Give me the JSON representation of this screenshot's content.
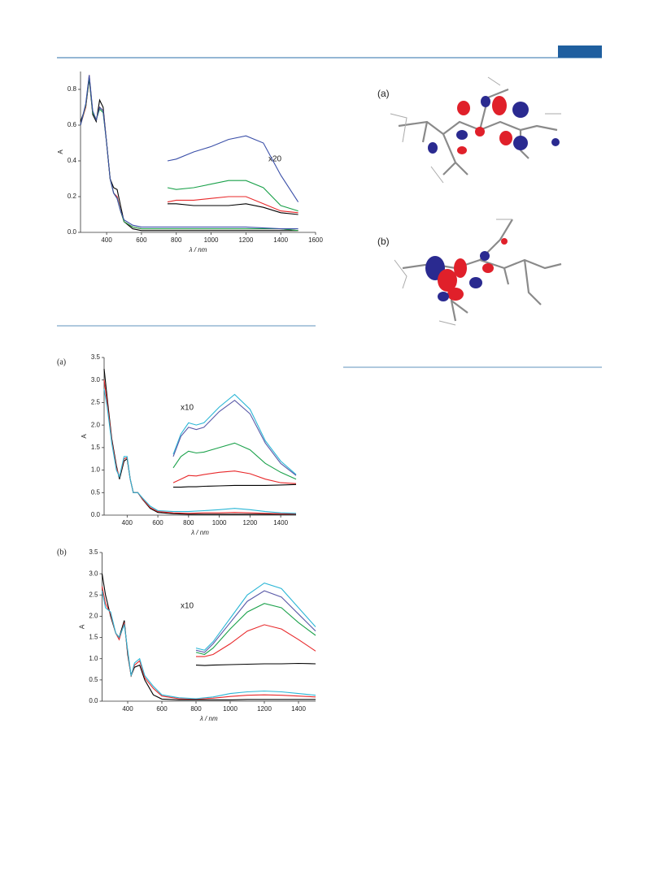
{
  "chart_data": [
    {
      "type": "line",
      "x_label": "λ / nm",
      "y_label": "A",
      "annotation": "x20",
      "xlim": [
        250,
        1600
      ],
      "ylim": [
        0,
        0.9
      ],
      "xticks": [
        400,
        600,
        800,
        1000,
        1200,
        1400,
        1600
      ],
      "yticks": [
        {
          "value": 0,
          "label": "0.0"
        },
        0.2,
        0.4,
        0.6,
        0.8
      ],
      "series": [
        {
          "color": "#000000",
          "x": [
            250,
            280,
            300,
            320,
            340,
            360,
            380,
            400,
            420,
            440,
            460,
            480,
            500,
            550,
            600,
            700,
            800,
            1000,
            1200,
            1400,
            1500
          ],
          "values": [
            0.62,
            0.7,
            0.86,
            0.66,
            0.62,
            0.74,
            0.7,
            0.5,
            0.3,
            0.25,
            0.24,
            0.15,
            0.06,
            0.02,
            0.01,
            0.01,
            0.01,
            0.01,
            0.01,
            0.01,
            0.01
          ]
        },
        {
          "color": "#e8282a",
          "x": [
            250,
            280,
            300,
            320,
            340,
            360,
            380,
            400,
            420,
            440,
            460,
            480,
            500,
            550,
            600,
            700,
            800,
            1000,
            1200,
            1400,
            1500
          ],
          "values": [
            0.6,
            0.7,
            0.88,
            0.67,
            0.63,
            0.7,
            0.68,
            0.5,
            0.3,
            0.22,
            0.2,
            0.12,
            0.06,
            0.03,
            0.02,
            0.02,
            0.02,
            0.02,
            0.02,
            0.02,
            0.01
          ]
        },
        {
          "color": "#1aa14a",
          "x": [
            250,
            280,
            300,
            320,
            340,
            360,
            380,
            400,
            420,
            440,
            460,
            480,
            500,
            550,
            600,
            700,
            800,
            1000,
            1200,
            1400,
            1500
          ],
          "values": [
            0.6,
            0.71,
            0.87,
            0.67,
            0.63,
            0.69,
            0.67,
            0.5,
            0.3,
            0.22,
            0.19,
            0.12,
            0.06,
            0.03,
            0.02,
            0.02,
            0.02,
            0.02,
            0.02,
            0.02,
            0.01
          ]
        },
        {
          "color": "#3a4fa8",
          "x": [
            250,
            280,
            300,
            320,
            340,
            360,
            380,
            400,
            420,
            440,
            460,
            480,
            500,
            550,
            600,
            700,
            800,
            1000,
            1200,
            1400,
            1500
          ],
          "values": [
            0.6,
            0.72,
            0.88,
            0.68,
            0.63,
            0.7,
            0.68,
            0.5,
            0.3,
            0.22,
            0.19,
            0.12,
            0.07,
            0.04,
            0.03,
            0.03,
            0.03,
            0.03,
            0.03,
            0.02,
            0.02
          ]
        },
        {
          "color": "#3a4fa8",
          "x": [
            750,
            800,
            900,
            1000,
            1100,
            1200,
            1300,
            1400,
            1500
          ],
          "values": [
            0.4,
            0.41,
            0.45,
            0.48,
            0.52,
            0.54,
            0.5,
            0.32,
            0.17
          ]
        },
        {
          "color": "#1aa14a",
          "x": [
            750,
            800,
            900,
            1000,
            1100,
            1200,
            1300,
            1400,
            1500
          ],
          "values": [
            0.25,
            0.24,
            0.25,
            0.27,
            0.29,
            0.29,
            0.25,
            0.15,
            0.12
          ]
        },
        {
          "color": "#e8282a",
          "x": [
            750,
            800,
            900,
            1000,
            1100,
            1200,
            1300,
            1400,
            1500
          ],
          "values": [
            0.17,
            0.18,
            0.18,
            0.19,
            0.2,
            0.2,
            0.16,
            0.12,
            0.11
          ]
        },
        {
          "color": "#000000",
          "x": [
            750,
            800,
            900,
            1000,
            1100,
            1200,
            1300,
            1400,
            1500
          ],
          "values": [
            0.16,
            0.16,
            0.15,
            0.15,
            0.15,
            0.16,
            0.14,
            0.11,
            0.1
          ]
        }
      ]
    },
    {
      "type": "line",
      "panel_label": "(a)",
      "x_label": "λ / nm",
      "y_label": "A",
      "annotation": "x10",
      "xlim": [
        250,
        1500
      ],
      "ylim": [
        0,
        3.5
      ],
      "xticks": [
        400,
        600,
        800,
        1000,
        1200,
        1400
      ],
      "yticks": [
        {
          "value": 0,
          "label": "0.0"
        },
        0.5,
        {
          "value": 1,
          "label": "1.0"
        },
        1.5,
        {
          "value": 2,
          "label": "2.0"
        },
        2.5,
        {
          "value": 3,
          "label": "3.0"
        },
        3.5
      ],
      "series": [
        {
          "color": "#000000",
          "x": [
            250,
            270,
            300,
            330,
            350,
            380,
            400,
            420,
            440,
            470,
            500,
            550,
            600,
            700,
            800,
            900,
            1000,
            1100,
            1200,
            1300,
            1400,
            1500
          ],
          "values": [
            3.25,
            2.6,
            1.7,
            1.1,
            0.8,
            1.2,
            1.25,
            0.8,
            0.5,
            0.5,
            0.35,
            0.15,
            0.06,
            0.03,
            0.02,
            0.02,
            0.02,
            0.02,
            0.02,
            0.02,
            0.02,
            0.02
          ]
        },
        {
          "color": "#e8282a",
          "x": [
            250,
            270,
            300,
            330,
            350,
            380,
            400,
            420,
            440,
            470,
            500,
            550,
            600,
            700,
            800,
            900,
            1000,
            1100,
            1200,
            1300,
            1400,
            1500
          ],
          "values": [
            3.0,
            2.5,
            1.65,
            1.05,
            0.85,
            1.25,
            1.28,
            0.8,
            0.5,
            0.5,
            0.36,
            0.17,
            0.08,
            0.05,
            0.04,
            0.05,
            0.05,
            0.06,
            0.05,
            0.04,
            0.03,
            0.03
          ]
        },
        {
          "color": "#2ab6d6",
          "x": [
            250,
            270,
            300,
            330,
            350,
            380,
            400,
            420,
            440,
            470,
            500,
            550,
            600,
            700,
            800,
            900,
            1000,
            1100,
            1200,
            1300,
            1400,
            1500
          ],
          "values": [
            2.8,
            2.4,
            1.6,
            1.0,
            0.85,
            1.3,
            1.3,
            0.8,
            0.5,
            0.5,
            0.38,
            0.2,
            0.1,
            0.08,
            0.08,
            0.1,
            0.12,
            0.15,
            0.12,
            0.08,
            0.05,
            0.04
          ]
        },
        {
          "color": "#2ab6d6",
          "x": [
            700,
            750,
            800,
            850,
            900,
            1000,
            1100,
            1200,
            1300,
            1400,
            1500
          ],
          "values": [
            1.35,
            1.8,
            2.05,
            2.0,
            2.05,
            2.4,
            2.68,
            2.35,
            1.65,
            1.2,
            0.9
          ]
        },
        {
          "color": "#5a5aa8",
          "x": [
            700,
            750,
            800,
            850,
            900,
            1000,
            1100,
            1200,
            1300,
            1400,
            1500
          ],
          "values": [
            1.3,
            1.75,
            1.95,
            1.9,
            1.95,
            2.3,
            2.55,
            2.25,
            1.6,
            1.15,
            0.88
          ]
        },
        {
          "color": "#1aa14a",
          "x": [
            700,
            750,
            800,
            850,
            900,
            1000,
            1100,
            1200,
            1300,
            1400,
            1500
          ],
          "values": [
            1.05,
            1.3,
            1.42,
            1.38,
            1.4,
            1.5,
            1.6,
            1.45,
            1.15,
            0.95,
            0.8
          ]
        },
        {
          "color": "#e8282a",
          "x": [
            700,
            750,
            800,
            850,
            900,
            1000,
            1100,
            1200,
            1300,
            1400,
            1500
          ],
          "values": [
            0.72,
            0.8,
            0.88,
            0.87,
            0.9,
            0.95,
            0.98,
            0.92,
            0.8,
            0.72,
            0.7
          ]
        },
        {
          "color": "#000000",
          "x": [
            700,
            750,
            800,
            850,
            900,
            1000,
            1100,
            1200,
            1300,
            1400,
            1500
          ],
          "values": [
            0.62,
            0.62,
            0.63,
            0.63,
            0.64,
            0.65,
            0.66,
            0.66,
            0.66,
            0.67,
            0.68
          ]
        }
      ]
    },
    {
      "type": "line",
      "panel_label": "(b)",
      "x_label": "λ / nm",
      "y_label": "A",
      "annotation": "x10",
      "xlim": [
        250,
        1500
      ],
      "ylim": [
        0,
        3.5
      ],
      "xticks": [
        400,
        600,
        800,
        1000,
        1200,
        1400
      ],
      "yticks": [
        {
          "value": 0,
          "label": "0.0"
        },
        0.5,
        {
          "value": 1,
          "label": "1.0"
        },
        1.5,
        {
          "value": 2,
          "label": "2.0"
        },
        2.5,
        {
          "value": 3,
          "label": "3.0"
        },
        3.5
      ],
      "series": [
        {
          "color": "#000000",
          "x": [
            250,
            270,
            300,
            330,
            350,
            380,
            400,
            420,
            440,
            470,
            500,
            550,
            600,
            700,
            800,
            900,
            1000,
            1100,
            1200,
            1300,
            1400,
            1500
          ],
          "values": [
            3.0,
            2.5,
            2.0,
            1.6,
            1.5,
            1.9,
            1.1,
            0.6,
            0.8,
            0.85,
            0.5,
            0.15,
            0.05,
            0.03,
            0.03,
            0.03,
            0.03,
            0.04,
            0.04,
            0.04,
            0.04,
            0.04
          ]
        },
        {
          "color": "#e8282a",
          "x": [
            250,
            270,
            300,
            330,
            350,
            380,
            400,
            420,
            440,
            470,
            500,
            550,
            600,
            700,
            800,
            900,
            1000,
            1100,
            1200,
            1300,
            1400,
            1500
          ],
          "values": [
            2.7,
            2.3,
            2.05,
            1.6,
            1.45,
            1.85,
            1.15,
            0.6,
            0.85,
            0.95,
            0.55,
            0.3,
            0.12,
            0.06,
            0.05,
            0.07,
            0.11,
            0.14,
            0.15,
            0.14,
            0.12,
            0.1
          ]
        },
        {
          "color": "#2ab6d6",
          "x": [
            250,
            270,
            300,
            330,
            350,
            380,
            400,
            420,
            440,
            470,
            500,
            550,
            600,
            700,
            800,
            900,
            1000,
            1100,
            1200,
            1300,
            1400,
            1500
          ],
          "values": [
            2.6,
            2.2,
            2.1,
            1.6,
            1.5,
            1.8,
            1.2,
            0.6,
            0.9,
            1.0,
            0.6,
            0.35,
            0.15,
            0.08,
            0.06,
            0.1,
            0.18,
            0.22,
            0.24,
            0.22,
            0.18,
            0.14
          ]
        },
        {
          "color": "#2ab6d6",
          "x": [
            800,
            850,
            900,
            1000,
            1100,
            1200,
            1300,
            1400,
            1500
          ],
          "values": [
            1.25,
            1.2,
            1.4,
            1.95,
            2.5,
            2.78,
            2.65,
            2.2,
            1.75
          ]
        },
        {
          "color": "#5a5aa8",
          "x": [
            800,
            850,
            900,
            1000,
            1100,
            1200,
            1300,
            1400,
            1500
          ],
          "values": [
            1.2,
            1.15,
            1.35,
            1.85,
            2.35,
            2.6,
            2.45,
            2.05,
            1.65
          ]
        },
        {
          "color": "#1aa14a",
          "x": [
            800,
            850,
            900,
            1000,
            1100,
            1200,
            1300,
            1400,
            1500
          ],
          "values": [
            1.15,
            1.1,
            1.25,
            1.7,
            2.1,
            2.3,
            2.2,
            1.85,
            1.55
          ]
        },
        {
          "color": "#e8282a",
          "x": [
            800,
            850,
            900,
            1000,
            1100,
            1200,
            1300,
            1400,
            1500
          ],
          "values": [
            1.05,
            1.05,
            1.1,
            1.35,
            1.65,
            1.8,
            1.7,
            1.45,
            1.18
          ]
        },
        {
          "color": "#000000",
          "x": [
            800,
            850,
            900,
            1000,
            1100,
            1200,
            1300,
            1400,
            1500
          ],
          "values": [
            0.85,
            0.84,
            0.85,
            0.86,
            0.87,
            0.88,
            0.88,
            0.89,
            0.88
          ]
        }
      ]
    }
  ],
  "figure": {
    "panels": [
      {
        "label": "(a)"
      },
      {
        "label": "(b)"
      }
    ]
  }
}
